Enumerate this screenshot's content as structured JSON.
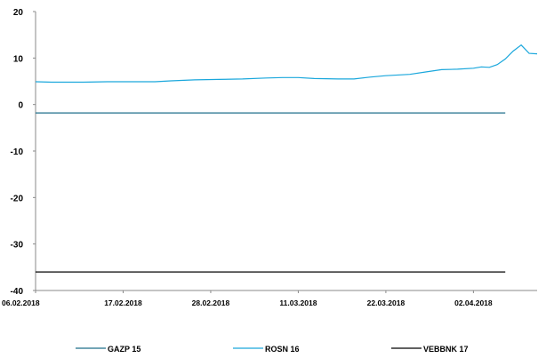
{
  "chart_data": {
    "type": "line",
    "title": "",
    "xlabel": "",
    "ylabel": "",
    "ylim": [
      -40,
      20
    ],
    "y_ticks": [
      20,
      10,
      0,
      -10,
      -20,
      -30,
      -40
    ],
    "x_tick_labels": [
      "06.02.2018",
      "17.02.2018",
      "28.02.2018",
      "11.03.2018",
      "22.03.2018",
      "02.04.2018"
    ],
    "x_range": [
      "2018-02-06",
      "2018-04-06"
    ],
    "grid": false,
    "legend_position": "bottom",
    "series": [
      {
        "name": "GAZP 15",
        "color": "#1f6f8b",
        "points": [
          [
            "2018-02-06",
            -1.8
          ],
          [
            "2018-04-06",
            -1.8
          ]
        ]
      },
      {
        "name": "ROSN 16",
        "color": "#1aa7dc",
        "points": [
          [
            "2018-02-06",
            4.9
          ],
          [
            "2018-02-08",
            4.8
          ],
          [
            "2018-02-12",
            4.8
          ],
          [
            "2018-02-15",
            4.9
          ],
          [
            "2018-02-18",
            4.9
          ],
          [
            "2018-02-21",
            4.9
          ],
          [
            "2018-02-23",
            5.1
          ],
          [
            "2018-02-26",
            5.3
          ],
          [
            "2018-03-01",
            5.4
          ],
          [
            "2018-03-04",
            5.5
          ],
          [
            "2018-03-07",
            5.7
          ],
          [
            "2018-03-09",
            5.8
          ],
          [
            "2018-03-11",
            5.8
          ],
          [
            "2018-03-13",
            5.6
          ],
          [
            "2018-03-16",
            5.5
          ],
          [
            "2018-03-18",
            5.5
          ],
          [
            "2018-03-20",
            5.9
          ],
          [
            "2018-03-22",
            6.2
          ],
          [
            "2018-03-25",
            6.5
          ],
          [
            "2018-03-27",
            7.0
          ],
          [
            "2018-03-29",
            7.5
          ],
          [
            "2018-03-31",
            7.6
          ],
          [
            "2018-04-02",
            7.8
          ],
          [
            "2018-04-03",
            8.1
          ],
          [
            "2018-04-04",
            8.0
          ],
          [
            "2018-04-05",
            8.6
          ],
          [
            "2018-04-06",
            9.8
          ],
          [
            "2018-04-07",
            11.5
          ],
          [
            "2018-04-08",
            12.8
          ],
          [
            "2018-04-09",
            11.0
          ],
          [
            "2018-04-10",
            10.9
          ]
        ]
      },
      {
        "name": "VEBBNK 17",
        "color": "#000000",
        "points": [
          [
            "2018-02-06",
            -36.0
          ],
          [
            "2018-04-06",
            -36.0
          ]
        ]
      }
    ]
  }
}
